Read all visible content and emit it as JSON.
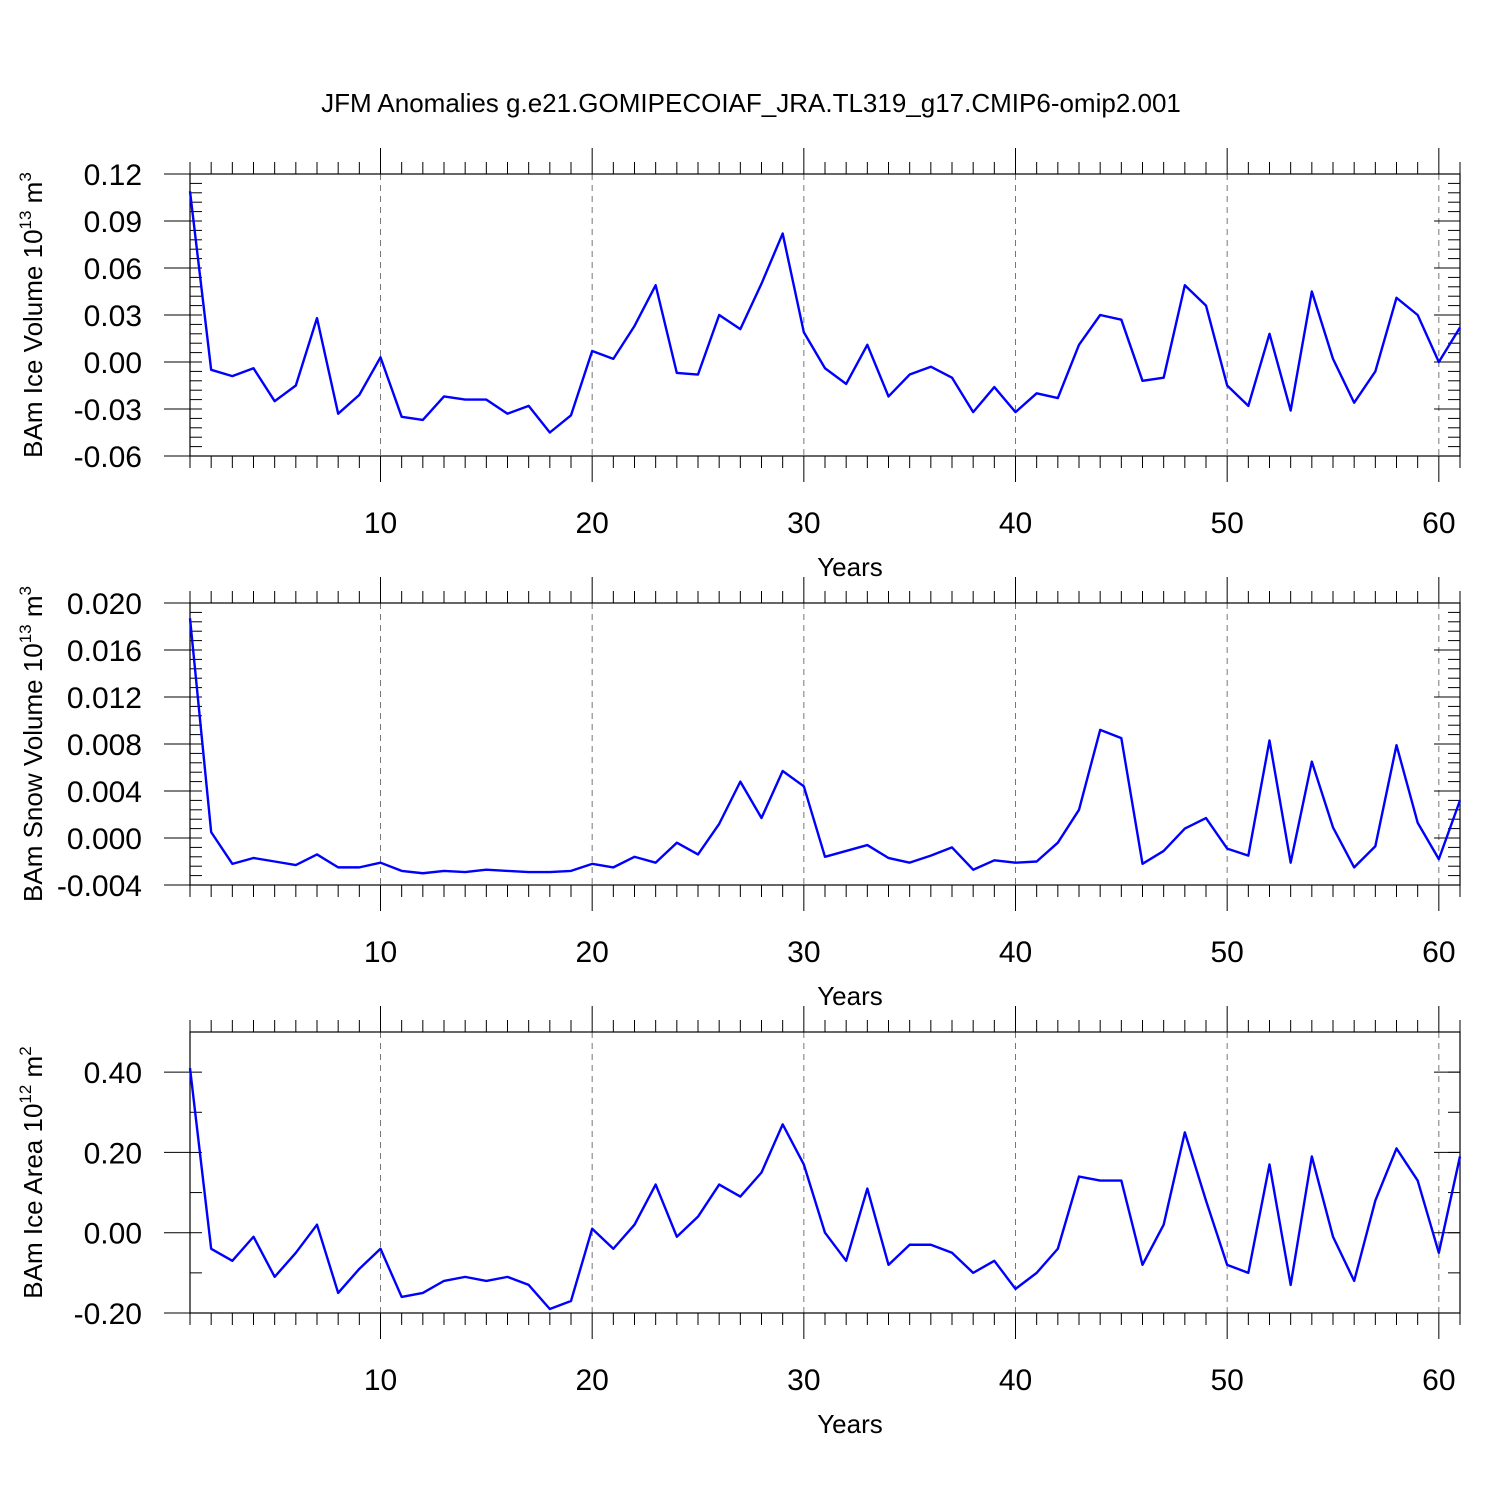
{
  "title": "JFM Anomalies g.e21.GOMIPECOIAF_JRA.TL319_g17.CMIP6-omip2.001",
  "line_color": "#0000ff",
  "chart_data": [
    {
      "type": "line",
      "xlabel": "Years",
      "ylabel": {
        "text": "BAm Ice Volume 10",
        "exp": "13",
        "unit": " m",
        "unit_exp": "3"
      },
      "xlim": [
        1,
        61
      ],
      "ylim": [
        -0.06,
        0.12
      ],
      "yticks": [
        -0.06,
        -0.03,
        0.0,
        0.03,
        0.06,
        0.09,
        0.12
      ],
      "ytick_labels": [
        "-0.06",
        "-0.03",
        "0.00",
        "0.03",
        "0.06",
        "0.09",
        "0.12"
      ],
      "yminor_step": 0.006,
      "xticks": [
        10,
        20,
        30,
        40,
        50,
        60
      ],
      "xtick_labels": [
        "10",
        "20",
        "30",
        "40",
        "50",
        "60"
      ],
      "series": [
        {
          "name": "BAm Ice Volume",
          "x_start": 1,
          "values": [
            0.109,
            -0.005,
            -0.009,
            -0.004,
            -0.025,
            -0.015,
            0.028,
            -0.033,
            -0.021,
            0.003,
            -0.035,
            -0.037,
            -0.022,
            -0.024,
            -0.024,
            -0.033,
            -0.028,
            -0.045,
            -0.034,
            0.007,
            0.002,
            0.023,
            0.049,
            -0.007,
            -0.008,
            0.03,
            0.021,
            0.05,
            0.082,
            0.019,
            -0.004,
            -0.014,
            0.011,
            -0.022,
            -0.008,
            -0.003,
            -0.01,
            -0.032,
            -0.016,
            -0.032,
            -0.02,
            -0.023,
            0.011,
            0.03,
            0.027,
            -0.012,
            -0.01,
            0.049,
            0.036,
            -0.015,
            -0.028,
            0.018,
            -0.031,
            0.045,
            0.002,
            -0.026,
            -0.006,
            0.041,
            0.03,
            0.0,
            0.022
          ]
        }
      ]
    },
    {
      "type": "line",
      "xlabel": "Years",
      "ylabel": {
        "text": "BAm Snow Volume 10",
        "exp": "13",
        "unit": " m",
        "unit_exp": "3"
      },
      "xlim": [
        1,
        61
      ],
      "ylim": [
        -0.004,
        0.02
      ],
      "yticks": [
        -0.004,
        0.0,
        0.004,
        0.008,
        0.012,
        0.016,
        0.02
      ],
      "ytick_labels": [
        "-0.004",
        "0.000",
        "0.004",
        "0.008",
        "0.012",
        "0.016",
        "0.020"
      ],
      "yminor_step": 0.0008,
      "xticks": [
        10,
        20,
        30,
        40,
        50,
        60
      ],
      "xtick_labels": [
        "10",
        "20",
        "30",
        "40",
        "50",
        "60"
      ],
      "series": [
        {
          "name": "BAm Snow Volume",
          "x_start": 1,
          "values": [
            0.0187,
            0.0005,
            -0.0022,
            -0.0017,
            -0.002,
            -0.0023,
            -0.0014,
            -0.0025,
            -0.0025,
            -0.0021,
            -0.0028,
            -0.003,
            -0.0028,
            -0.0029,
            -0.0027,
            -0.0028,
            -0.0029,
            -0.0029,
            -0.0028,
            -0.0022,
            -0.0025,
            -0.0016,
            -0.0021,
            -0.0004,
            -0.0014,
            0.0012,
            0.0048,
            0.0017,
            0.0057,
            0.0044,
            -0.0016,
            -0.0011,
            -0.0006,
            -0.0017,
            -0.0021,
            -0.0015,
            -0.0008,
            -0.0027,
            -0.0019,
            -0.0021,
            -0.002,
            -0.0004,
            0.0024,
            0.0092,
            0.0085,
            -0.0022,
            -0.0011,
            0.0008,
            0.0017,
            -0.0009,
            -0.0015,
            0.0083,
            -0.0021,
            0.0065,
            0.0009,
            -0.0025,
            -0.0007,
            0.0079,
            0.0013,
            -0.0018,
            0.0032
          ]
        }
      ]
    },
    {
      "type": "line",
      "xlabel": "Years",
      "ylabel": {
        "text": "BAm Ice Area 10",
        "exp": "12",
        "unit": " m",
        "unit_exp": "2"
      },
      "xlim": [
        1,
        61
      ],
      "ylim": [
        -0.2,
        0.5
      ],
      "yticks": [
        -0.2,
        0.0,
        0.2,
        0.4
      ],
      "ytick_labels": [
        "-0.20",
        "0.00",
        "0.20",
        "0.40"
      ],
      "yminor_step": 0.1,
      "xticks": [
        10,
        20,
        30,
        40,
        50,
        60
      ],
      "xtick_labels": [
        "10",
        "20",
        "30",
        "40",
        "50",
        "60"
      ],
      "series": [
        {
          "name": "BAm Ice Area",
          "x_start": 1,
          "values": [
            0.41,
            -0.04,
            -0.07,
            -0.01,
            -0.11,
            -0.05,
            0.02,
            -0.15,
            -0.09,
            -0.04,
            -0.16,
            -0.15,
            -0.12,
            -0.11,
            -0.12,
            -0.11,
            -0.13,
            -0.19,
            -0.17,
            0.01,
            -0.04,
            0.02,
            0.12,
            -0.01,
            0.04,
            0.12,
            0.09,
            0.15,
            0.27,
            0.17,
            0.0,
            -0.07,
            0.11,
            -0.08,
            -0.03,
            -0.03,
            -0.05,
            -0.1,
            -0.07,
            -0.14,
            -0.1,
            -0.04,
            0.14,
            0.13,
            0.13,
            -0.08,
            0.02,
            0.25,
            0.08,
            -0.08,
            -0.1,
            0.17,
            -0.13,
            0.19,
            -0.01,
            -0.12,
            0.08,
            0.21,
            0.13,
            -0.05,
            0.19
          ]
        }
      ]
    }
  ]
}
